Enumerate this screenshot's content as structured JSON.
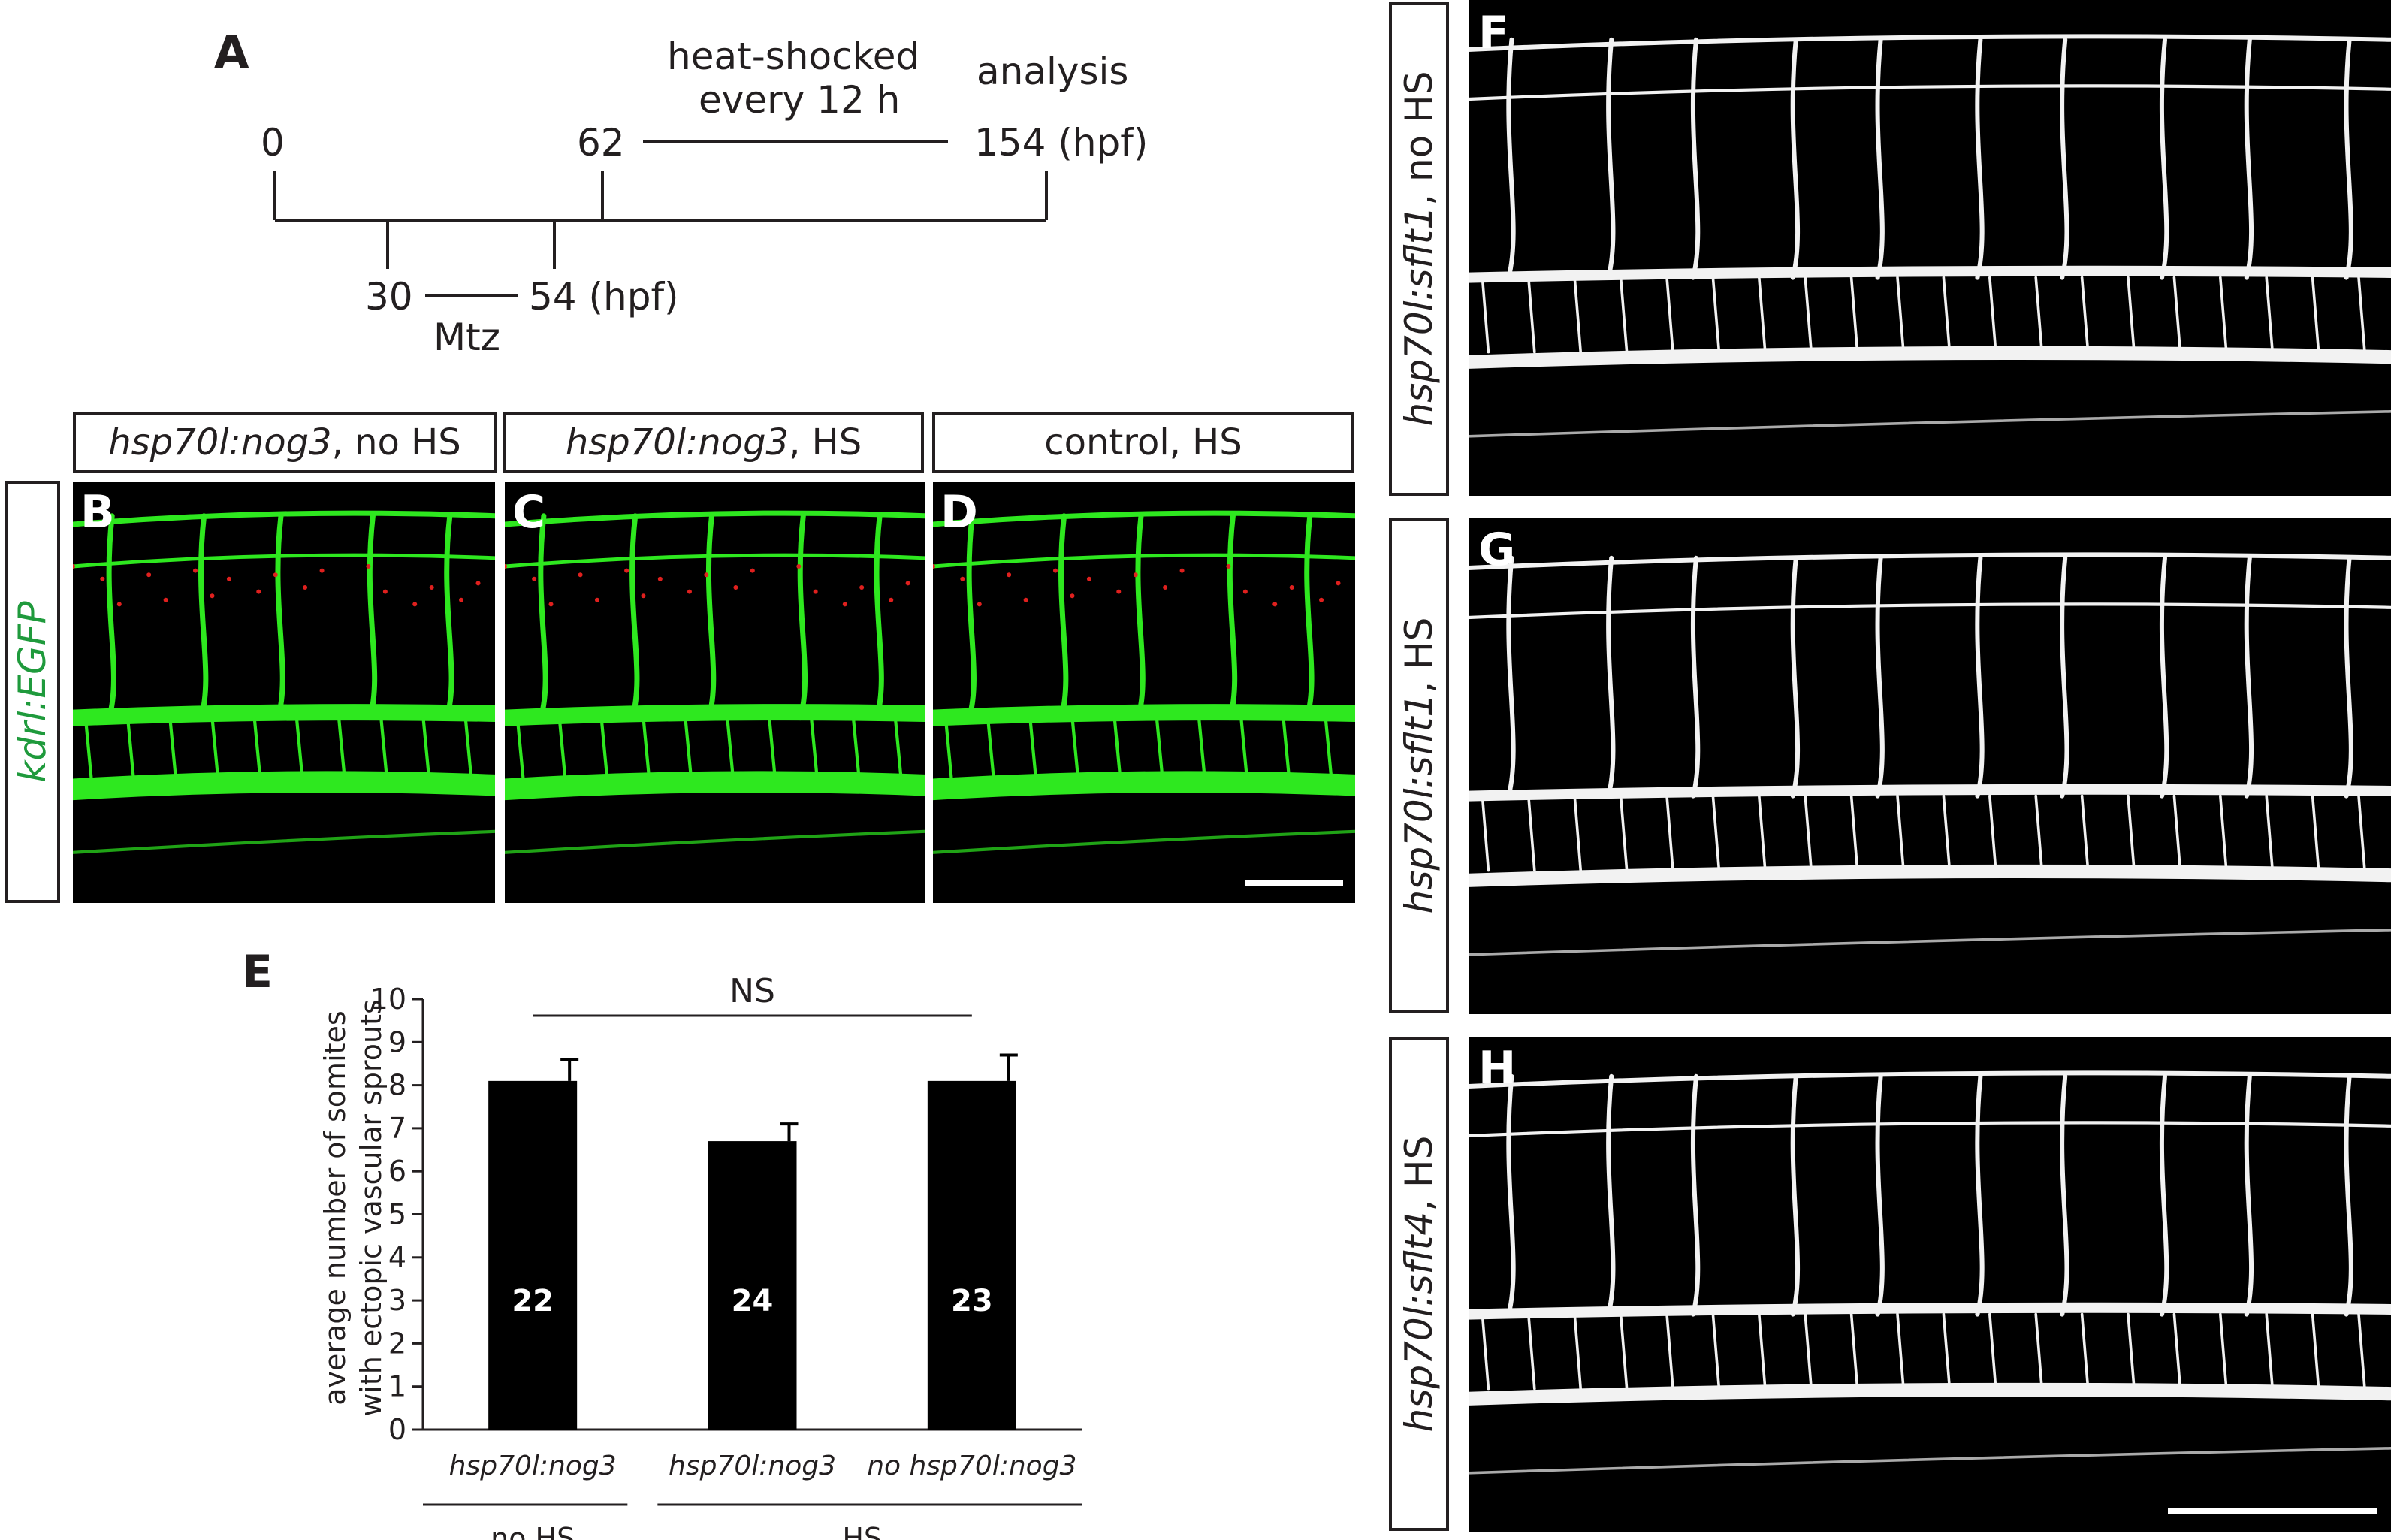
{
  "panelA": {
    "letter": "A",
    "label_0": "0",
    "label_62": "62",
    "label_heat_line1": "heat-shocked",
    "label_heat_line2": "every 12 h",
    "label_analysis": "analysis",
    "label_154": "154 (hpf)",
    "label_30": "30",
    "label_54": "54 (hpf)",
    "label_mtz": "Mtz"
  },
  "panelsBCD": {
    "side_label": "kdrl:EGFP",
    "B": {
      "letter": "B",
      "genotype": "hsp70l:nog3",
      "condition": ", no HS"
    },
    "C": {
      "letter": "C",
      "genotype": "hsp70l:nog3",
      "condition": ", HS"
    },
    "D": {
      "letter": "D",
      "condition": "control, HS"
    },
    "colors": {
      "vessel": "#2ee81f",
      "dots": "#e0201e",
      "background": "#000000"
    }
  },
  "panelE": {
    "letter": "E",
    "ns_label": "NS",
    "ylabel_line1": "average number of somites",
    "ylabel_line2": "with ectopic vascular sprouts",
    "group_labels": [
      "no HS",
      "HS"
    ]
  },
  "chart_data": {
    "type": "bar",
    "categories": [
      "hsp70l:nog3",
      "hsp70l:nog3",
      "no hsp70l:nog3"
    ],
    "values": [
      8.1,
      6.7,
      8.1
    ],
    "error": [
      0.5,
      0.4,
      0.6
    ],
    "n_labels": [
      "22",
      "24",
      "23"
    ],
    "ylim": [
      0,
      10
    ],
    "yticks": [
      "0",
      "1",
      "2",
      "3",
      "4",
      "5",
      "6",
      "7",
      "8",
      "9",
      "10"
    ],
    "ylabel": "average number of somites with ectopic vascular sprouts",
    "significance": "NS",
    "bar_color": "#000000"
  },
  "panelsFGH": {
    "F": {
      "letter": "F",
      "genotype": "hsp70l:sflt1",
      "condition": ", no HS"
    },
    "G": {
      "letter": "G",
      "genotype": "hsp70l:sflt1",
      "condition": ", HS"
    },
    "H": {
      "letter": "H",
      "genotype": "hsp70l:sflt4",
      "condition": ", HS"
    },
    "vessel_color": "#f2f2f2"
  }
}
